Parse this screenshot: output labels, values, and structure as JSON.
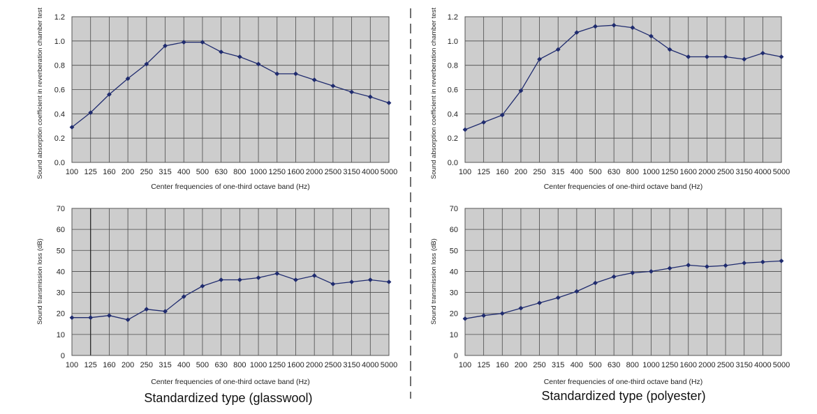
{
  "captions": {
    "left": "Standardized type (glasswool)",
    "right": "Standardized type (polyester)"
  },
  "chart_data": [
    {
      "type": "line",
      "panel": "top-left",
      "categories": [
        "100",
        "125",
        "160",
        "200",
        "250",
        "315",
        "400",
        "500",
        "630",
        "800",
        "1000",
        "1250",
        "1600",
        "2000",
        "2500",
        "3150",
        "4000",
        "5000"
      ],
      "series": [
        {
          "values": [
            0.29,
            0.41,
            0.56,
            0.69,
            0.81,
            0.96,
            0.99,
            0.99,
            0.91,
            0.87,
            0.81,
            0.73,
            0.73,
            0.68,
            0.63,
            0.58,
            0.54,
            0.49
          ]
        }
      ],
      "xlabel": "Center frequencies of one-third octave band (Hz)",
      "ylabel": "Sound absorption coefficient in reverberation chamber test",
      "ylim": [
        0,
        1.2
      ],
      "yticks": [
        "0.0",
        "0.2",
        "0.4",
        "0.6",
        "0.8",
        "1.0",
        "1.2"
      ],
      "grid": true,
      "color": "#1f2b6e"
    },
    {
      "type": "line",
      "panel": "top-right",
      "categories": [
        "100",
        "125",
        "160",
        "200",
        "250",
        "315",
        "400",
        "500",
        "630",
        "800",
        "1000",
        "1250",
        "1600",
        "2000",
        "2500",
        "3150",
        "4000",
        "5000"
      ],
      "series": [
        {
          "values": [
            0.27,
            0.33,
            0.39,
            0.59,
            0.85,
            0.93,
            1.07,
            1.12,
            1.13,
            1.11,
            1.04,
            0.93,
            0.87,
            0.87,
            0.87,
            0.85,
            0.9,
            0.87
          ]
        }
      ],
      "xlabel": "Center frequencies of one-third octave band (Hz)",
      "ylabel": "Sound absorption coefficient in reverberation chamber test",
      "ylim": [
        0,
        1.2
      ],
      "yticks": [
        "0.0",
        "0.2",
        "0.4",
        "0.6",
        "0.8",
        "1.0",
        "1.2"
      ],
      "grid": true,
      "color": "#1f2b6e"
    },
    {
      "type": "line",
      "panel": "bottom-left",
      "categories": [
        "100",
        "125",
        "160",
        "200",
        "250",
        "315",
        "400",
        "500",
        "630",
        "800",
        "1000",
        "1250",
        "1600",
        "2000",
        "2500",
        "3150",
        "4000",
        "5000"
      ],
      "series": [
        {
          "values": [
            18,
            18,
            19,
            17,
            22,
            21,
            28,
            33,
            36,
            36,
            37,
            39,
            36,
            38,
            34,
            35,
            36,
            35
          ]
        }
      ],
      "xlabel": "Center frequencies of one-third octave band (Hz)",
      "ylabel": "Sound transmission loss (dB)",
      "ylim": [
        0,
        70
      ],
      "yticks": [
        "0",
        "10",
        "20",
        "30",
        "40",
        "50",
        "60",
        "70"
      ],
      "grid": true,
      "marker_line_at": "125",
      "color": "#1f2b6e"
    },
    {
      "type": "line",
      "panel": "bottom-right",
      "categories": [
        "100",
        "125",
        "160",
        "200",
        "250",
        "315",
        "400",
        "500",
        "630",
        "800",
        "1000",
        "1250",
        "1600",
        "2000",
        "2500",
        "3150",
        "4000",
        "5000"
      ],
      "series": [
        {
          "values": [
            17.5,
            19,
            20,
            22.5,
            25,
            27.5,
            30.5,
            34.5,
            37.5,
            39.3,
            40,
            41.5,
            43,
            42.3,
            42.8,
            44,
            44.5,
            45
          ]
        }
      ],
      "xlabel": "Center frequencies of one-third octave band (Hz)",
      "ylabel": "Sound transmission loss (dB)",
      "ylim": [
        0,
        70
      ],
      "yticks": [
        "0",
        "10",
        "20",
        "30",
        "40",
        "50",
        "60",
        "70"
      ],
      "grid": true,
      "color": "#1f2b6e"
    }
  ]
}
